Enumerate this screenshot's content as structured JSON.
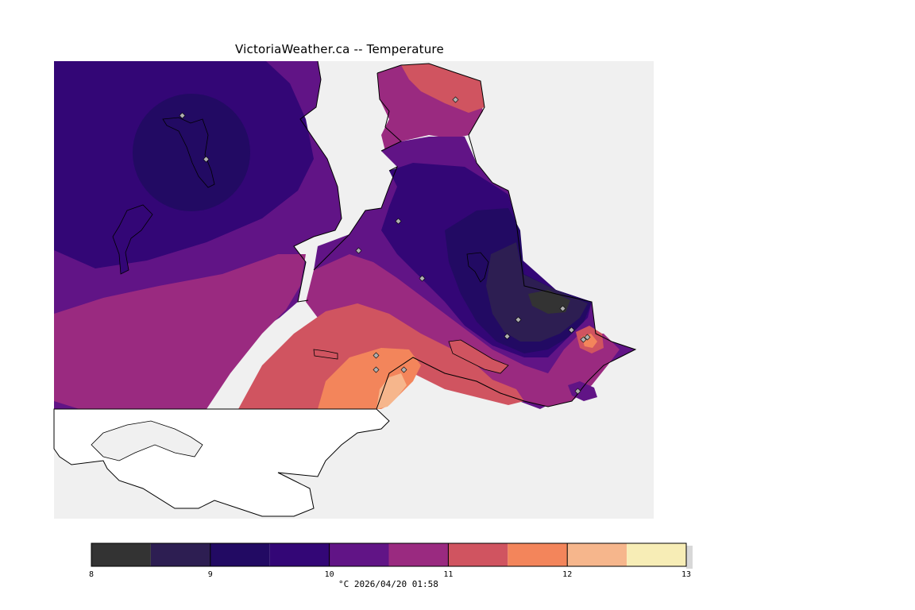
{
  "title": "VictoriaWeather.ca -- Temperature",
  "legend": {
    "caption": "°C  2026/04/20 01:58",
    "ticks": [
      "8",
      "9",
      "10",
      "11",
      "12",
      "13"
    ],
    "band_colors": [
      "#333333",
      "#2d1e52",
      "#220a63",
      "#330676",
      "#611486",
      "#9a2a80",
      "#d05460",
      "#f3855b",
      "#f6b68c",
      "#f7edb6"
    ]
  },
  "colors": {
    "water": "#f0f0f0",
    "land_unmapped": "#ffffff",
    "station_marker": "#b0b0b0"
  },
  "chart_data": {
    "type": "contour",
    "title": "VictoriaWeather.ca -- Temperature",
    "unit": "°C",
    "timestamp": "2026/04/20 01:58",
    "levels": [
      8,
      8.5,
      9,
      9.5,
      10,
      10.5,
      11,
      11.5,
      12,
      12.5,
      13
    ]
  }
}
